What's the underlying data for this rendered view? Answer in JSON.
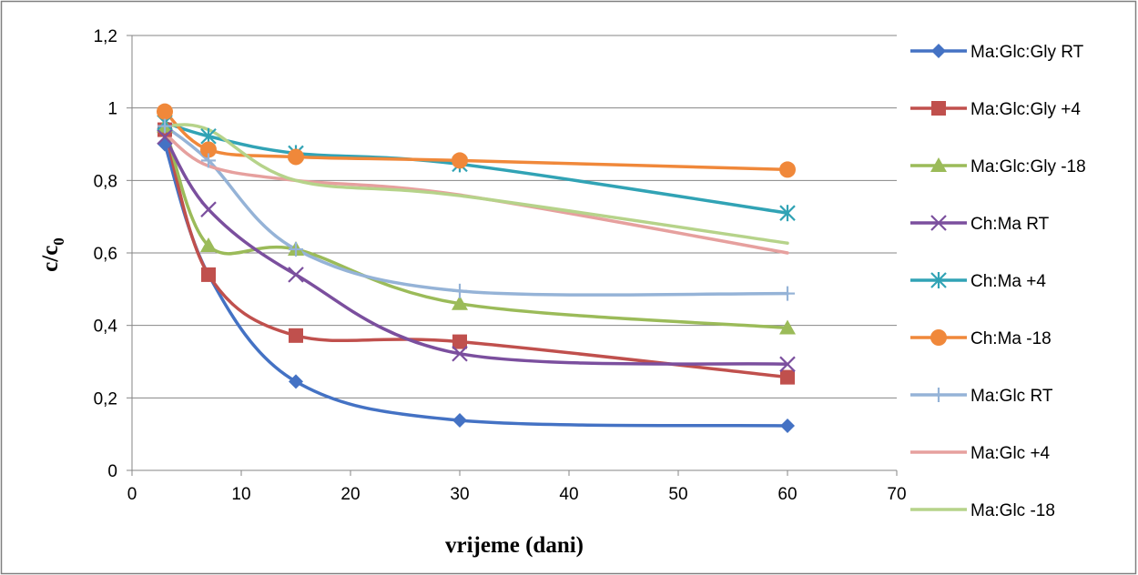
{
  "chart_data": {
    "type": "line",
    "title": "",
    "xlabel": "vrijeme (dani)",
    "ylabel": {
      "main": "c/c",
      "sub": "0"
    },
    "xlim": [
      0,
      70
    ],
    "ylim": [
      0,
      1.2
    ],
    "xticks": [
      "0",
      "10",
      "20",
      "30",
      "40",
      "50",
      "60",
      "70"
    ],
    "yticks": [
      "0",
      "0,2",
      "0,4",
      "0,6",
      "0,8",
      "1",
      "1,2"
    ],
    "grid": "horizontal",
    "legend_position": "right",
    "x": [
      3,
      7,
      15,
      30,
      60
    ],
    "series": [
      {
        "name": "Ma:Glc:Gly RT",
        "color": "#4472C4",
        "marker": "diamond",
        "values": [
          0.9,
          0.54,
          0.245,
          0.138,
          0.123
        ]
      },
      {
        "name": "Ma:Glc:Gly +4",
        "color": "#C0504D",
        "marker": "square",
        "values": [
          0.94,
          0.54,
          0.372,
          0.355,
          0.257
        ]
      },
      {
        "name": "Ma:Glc:Gly -18",
        "color": "#9BBB59",
        "marker": "triangle",
        "values": [
          0.95,
          0.62,
          0.61,
          0.46,
          0.393
        ]
      },
      {
        "name": "Ch:Ma RT",
        "color": "#7B4F9E",
        "marker": "x",
        "values": [
          0.92,
          0.72,
          0.54,
          0.322,
          0.293
        ]
      },
      {
        "name": "Ch:Ma +4",
        "color": "#31A3B5",
        "marker": "star",
        "values": [
          0.96,
          0.922,
          0.875,
          0.845,
          0.71
        ]
      },
      {
        "name": "Ch:Ma -18",
        "color": "#F0883A",
        "marker": "circle",
        "values": [
          0.99,
          0.885,
          0.865,
          0.855,
          0.83
        ]
      },
      {
        "name": "Ma:Glc RT",
        "color": "#95B3D7",
        "marker": "plus",
        "values": [
          0.95,
          0.855,
          0.61,
          0.495,
          0.488
        ]
      },
      {
        "name": "Ma:Glc +4",
        "color": "#E6A09E",
        "marker": "none",
        "values": [
          0.93,
          0.84,
          0.8,
          0.76,
          0.6
        ]
      },
      {
        "name": "Ma:Glc -18",
        "color": "#B6D38A",
        "marker": "none",
        "values": [
          0.95,
          0.94,
          0.8,
          0.758,
          0.627
        ]
      }
    ]
  }
}
